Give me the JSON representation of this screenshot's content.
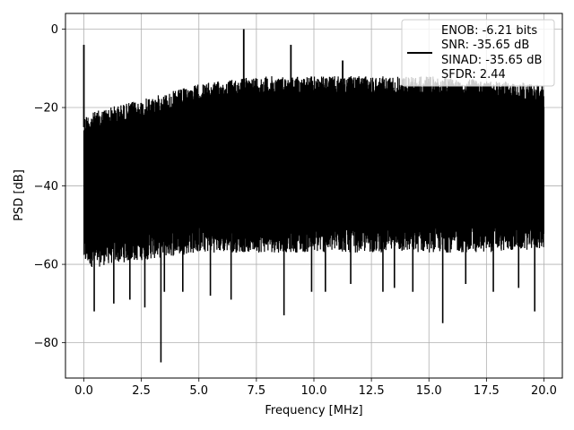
{
  "chart_data": {
    "type": "line",
    "title": "",
    "xlabel": "Frequency [MHz]",
    "ylabel": "PSD [dB]",
    "xlim": [
      -0.8,
      20.8
    ],
    "ylim": [
      -89,
      4
    ],
    "xticks": [
      0.0,
      2.5,
      5.0,
      7.5,
      10.0,
      12.5,
      15.0,
      17.5,
      20.0
    ],
    "xtick_labels": [
      "0.0",
      "2.5",
      "5.0",
      "7.5",
      "10.0",
      "12.5",
      "15.0",
      "17.5",
      "20.0"
    ],
    "yticks": [
      0,
      -20,
      -40,
      -60,
      -80
    ],
    "ytick_labels": [
      "0",
      "−20",
      "−40",
      "−60",
      "−80"
    ],
    "grid": true,
    "legend_position": "top-right",
    "legend": {
      "line1": "ENOB: -6.21 bits",
      "line2": "SNR: -35.65 dB",
      "line3": "SINAD: -35.65 dB",
      "line4": "SFDR: 2.44"
    },
    "series_color": "#000000",
    "envelope": {
      "x": [
        0.0,
        0.5,
        1.0,
        2.5,
        5.0,
        7.5,
        10.0,
        12.5,
        15.0,
        17.5,
        20.0
      ],
      "upper": [
        -22,
        -21,
        -20,
        -18,
        -14,
        -12,
        -12,
        -12,
        -12,
        -13,
        -14
      ],
      "lower": [
        -60,
        -61,
        -60,
        -59,
        -57,
        -57,
        -57,
        -57,
        -57,
        -57,
        -56
      ]
    },
    "spikes": [
      {
        "x": 0.0,
        "y": -4
      },
      {
        "x": 6.95,
        "y": 0
      },
      {
        "x": 9.0,
        "y": -4
      },
      {
        "x": 11.25,
        "y": -8
      }
    ],
    "dips": [
      {
        "x": 0.45,
        "y": -72
      },
      {
        "x": 1.3,
        "y": -70
      },
      {
        "x": 2.0,
        "y": -69
      },
      {
        "x": 2.65,
        "y": -71
      },
      {
        "x": 3.35,
        "y": -85
      },
      {
        "x": 3.5,
        "y": -67
      },
      {
        "x": 4.3,
        "y": -67
      },
      {
        "x": 5.5,
        "y": -68
      },
      {
        "x": 6.4,
        "y": -69
      },
      {
        "x": 8.7,
        "y": -73
      },
      {
        "x": 9.9,
        "y": -67
      },
      {
        "x": 10.5,
        "y": -67
      },
      {
        "x": 11.6,
        "y": -65
      },
      {
        "x": 13.0,
        "y": -67
      },
      {
        "x": 13.5,
        "y": -66
      },
      {
        "x": 14.3,
        "y": -67
      },
      {
        "x": 15.6,
        "y": -75
      },
      {
        "x": 16.6,
        "y": -65
      },
      {
        "x": 17.8,
        "y": -67
      },
      {
        "x": 18.9,
        "y": -66
      },
      {
        "x": 19.6,
        "y": -72
      }
    ]
  }
}
